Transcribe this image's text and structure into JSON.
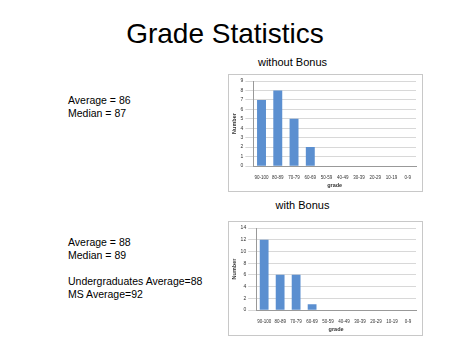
{
  "title": "Grade Statistics",
  "chart_data": [
    {
      "type": "bar",
      "title": "without Bonus",
      "annotations": [
        [
          "Average = 86",
          "Median = 87"
        ]
      ],
      "categories": [
        "90-100",
        "80-89",
        "70-79",
        "60-69",
        "50-59",
        "40-49",
        "30-39",
        "20-29",
        "10-19",
        "0-9"
      ],
      "values": [
        7,
        8,
        5,
        2,
        0,
        0,
        0,
        0,
        0,
        0
      ],
      "color": "#5b8fd0",
      "x_label": "grade",
      "y_label": "Number",
      "ylim": [
        0,
        9
      ],
      "yticks": [
        0,
        1,
        2,
        3,
        4,
        5,
        6,
        7,
        8,
        9
      ],
      "grid": true
    },
    {
      "type": "bar",
      "title": "with Bonus",
      "annotations": [
        [
          "Average = 88",
          "Median = 89"
        ],
        [
          "Undergraduates Average=88",
          "MS Average=92"
        ]
      ],
      "categories": [
        "90-100",
        "80-89",
        "70-79",
        "60-69",
        "50-59",
        "40-49",
        "30-39",
        "20-29",
        "10-19",
        "0-9"
      ],
      "values": [
        12,
        6,
        6,
        1,
        0,
        0,
        0,
        0,
        0,
        0
      ],
      "color": "#5b8fd0",
      "x_label": "grade",
      "y_label": "Number",
      "ylim": [
        0,
        14
      ],
      "yticks": [
        0,
        2,
        4,
        6,
        8,
        10,
        12,
        14
      ],
      "grid": true
    }
  ]
}
